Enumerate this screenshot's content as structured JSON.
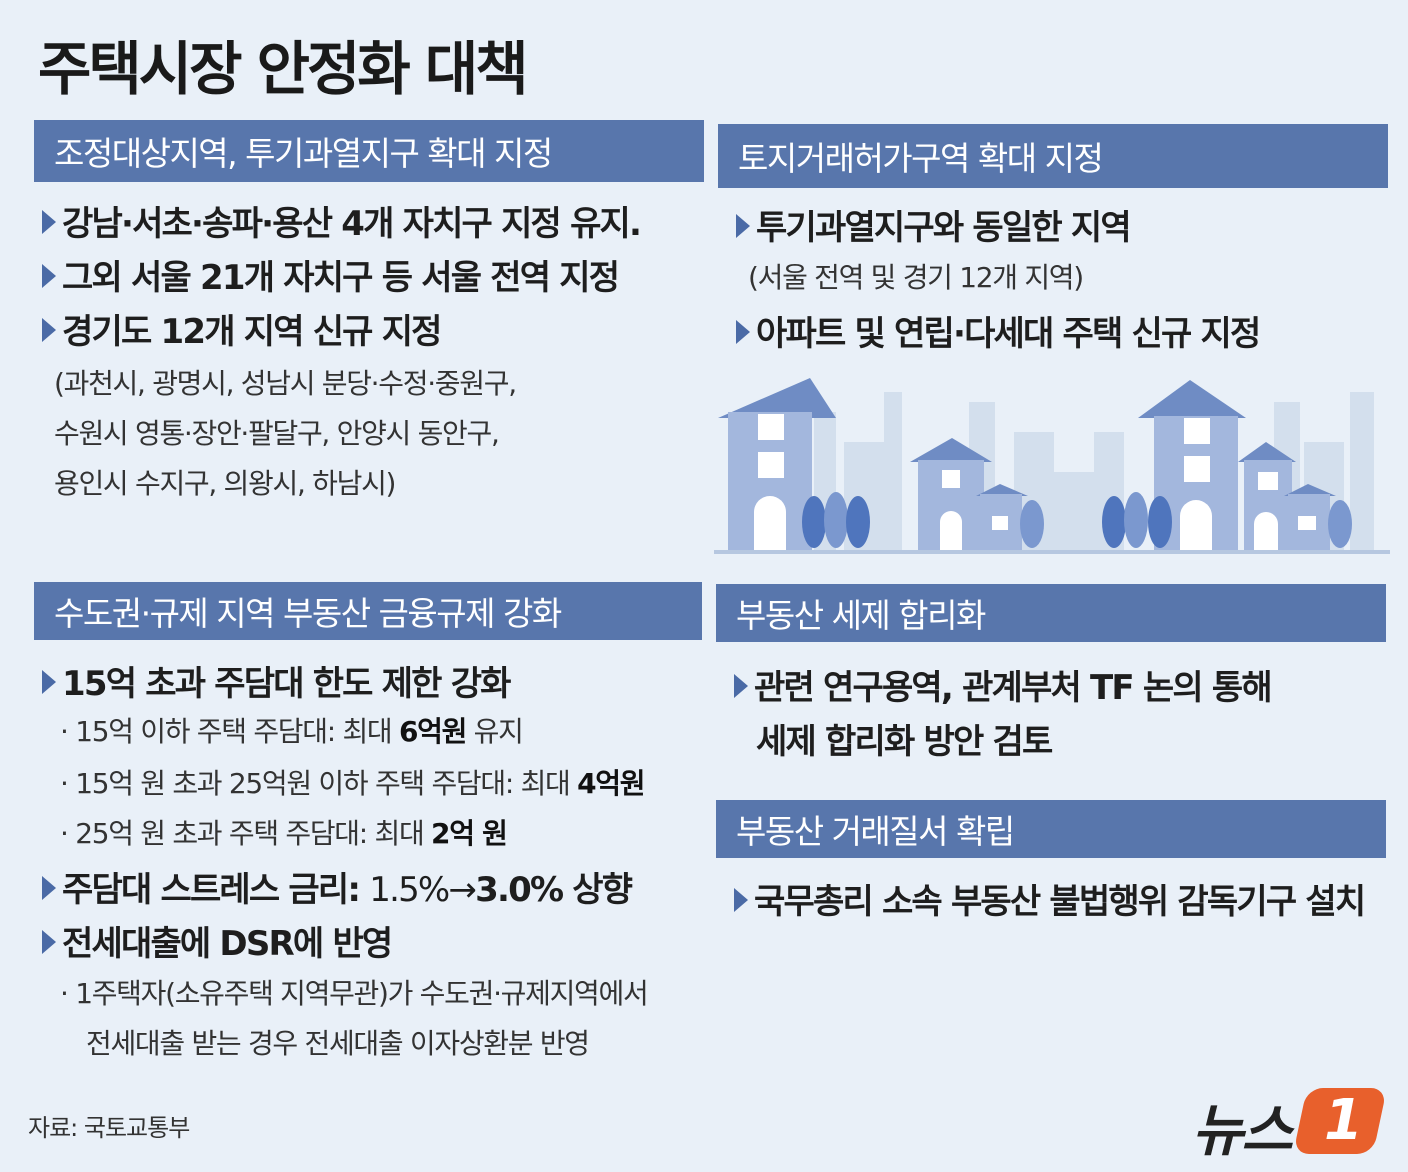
{
  "title": "주택시장 안정화 대책",
  "panels": {
    "p1": {
      "header": "조정대상지역, 투기과열지구 확대 지정",
      "items": [
        "강남·서초·송파·용산 4개 자치구 지정 유지.",
        "그외 서울 21개 자치구 등 서울 전역 지정",
        "경기도 12개 지역 신규 지정"
      ],
      "notes": [
        "(과천시, 광명시, 성남시 분당·수정·중원구,",
        "수원시 영통·장안·팔달구, 안양시 동안구,",
        "용인시 수지구, 의왕시, 하남시)"
      ]
    },
    "p2": {
      "header": "토지거래허가구역 확대 지정",
      "items": [
        "투기과열지구와 동일한 지역",
        "아파트 및 연립·다세대 주택 신규 지정"
      ],
      "note": "(서울 전역 및 경기 12개 지역)"
    },
    "p3": {
      "header": "수도권·규제 지역 부동산 금융규제 강화",
      "item1": "15억 초과 주담대 한도 제한 강화",
      "sub1": {
        "pre": "· 15억 이하 주택 주담대: 최대 ",
        "bold": "6억원",
        "post": " 유지"
      },
      "sub2": {
        "pre": "· 15억 원 초과 25억원 이하 주택 주담대: 최대 ",
        "bold": "4억원"
      },
      "sub3": {
        "pre": "· 25억 원 초과 주택 주담대: 최대 ",
        "bold": "2억 원"
      },
      "item2": {
        "pre": "주담대 스트레스 금리: ",
        "normal": "1.5%→",
        "bold": "3.0%",
        "post": " 상향"
      },
      "item3": "전세대출에 DSR에 반영",
      "sub4": "· 1주택자(소유주택 지역무관)가 수도권·규제지역에서",
      "sub5": "전세대출 받는 경우 전세대출 이자상환분 반영"
    },
    "p4": {
      "header": "부동산 세제 합리화",
      "item_line1": "관련 연구용역, 관계부처 TF 논의 통해",
      "item_line2": "세제 합리화 방안 검토"
    },
    "p5": {
      "header": "부동산 거래질서 확립",
      "item": "국무총리 소속 부동산 불법행위 감독기구 설치"
    }
  },
  "source": "자료: 국토교통부",
  "logo": {
    "text": "뉴스",
    "mark": "1",
    "mark_color": "#e8602c"
  },
  "colors": {
    "header_bg": "#5876ac",
    "background": "#e9f0f8",
    "bullet": "#4a6aa6"
  }
}
